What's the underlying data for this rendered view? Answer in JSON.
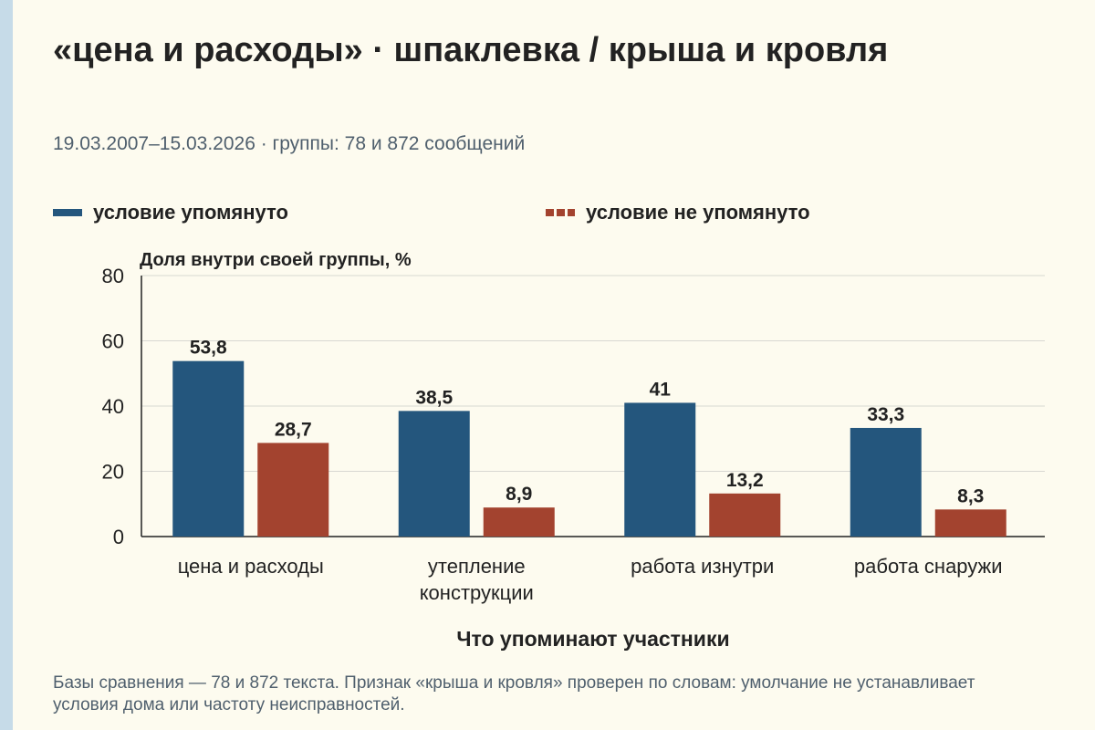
{
  "title": "«цена и расходы» · шпаклевка / крыша и кровля",
  "subtitle": "19.03.2007–15.03.2026 · группы: 78 и 872 сообщений",
  "note": "Базы сравнения — 78 и 872 текста. Признак «крыша и кровля» проверен по словам: умолчание не устанавливает условия дома или частоту неисправностей.",
  "colors": {
    "series1": "#24567d",
    "series2": "#a3432f",
    "background": "#fdfbef"
  },
  "chart_data": {
    "type": "bar",
    "ylabel": "Доля внутри своей группы, %",
    "xlabel": "Что упоминают участники",
    "ylim": [
      0,
      80
    ],
    "yticks": [
      0,
      20,
      40,
      60,
      80
    ],
    "grid": true,
    "legend": "top",
    "categories": [
      [
        "цена и расходы"
      ],
      [
        "утепление",
        "конструкции"
      ],
      [
        "работа изнутри"
      ],
      [
        "работа снаружи"
      ]
    ],
    "series": [
      {
        "name": "условие упомянуто",
        "color": "#24567d",
        "values": [
          53.8,
          38.5,
          41,
          33.3
        ],
        "labels": [
          "53,8",
          "38,5",
          "41",
          "33,3"
        ]
      },
      {
        "name": "условие не упомянуто",
        "color": "#a3432f",
        "values": [
          28.7,
          8.9,
          13.2,
          8.3
        ],
        "labels": [
          "28,7",
          "8,9",
          "13,2",
          "8,3"
        ]
      }
    ]
  }
}
